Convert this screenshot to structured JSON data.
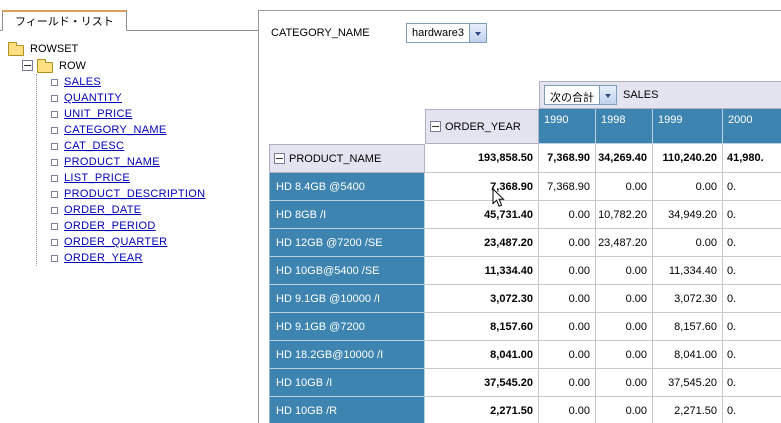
{
  "colors": {
    "accent_blue": "#3d84b0",
    "header_lavender": "#e4e4f0",
    "link_blue": "#0000bb"
  },
  "field_list": {
    "tab_label": "フィールド・リスト",
    "root": "ROWSET",
    "group": "ROW",
    "fields": [
      "SALES",
      "QUANTITY",
      "UNIT_PRICE",
      "CATEGORY_NAME",
      "CAT_DESC",
      "PRODUCT_NAME",
      "LIST_PRICE",
      "PRODUCT_DESCRIPTION",
      "ORDER_DATE",
      "ORDER_PERIOD",
      "ORDER_QUARTER",
      "ORDER_YEAR"
    ]
  },
  "filter": {
    "label": "CATEGORY_NAME",
    "value": "hardware3"
  },
  "pivot": {
    "measure_dropdown": "次の合計",
    "measure_name": "SALES",
    "col_dimension": "ORDER_YEAR",
    "row_dimension": "PRODUCT_NAME",
    "col_headers": [
      "1990",
      "1998",
      "1999",
      "2000"
    ],
    "grand_total": {
      "total": "193,858.50",
      "values": [
        "7,368.90",
        "34,269.40",
        "110,240.20",
        "41,980."
      ]
    },
    "rows": [
      {
        "name": "HD 8.4GB @5400",
        "total": "7,368.90",
        "values": [
          "7,368.90",
          "0.00",
          "0.00",
          "0."
        ]
      },
      {
        "name": "HD 8GB /I",
        "total": "45,731.40",
        "values": [
          "0.00",
          "10,782.20",
          "34,949.20",
          "0."
        ]
      },
      {
        "name": "HD 12GB @7200 /SE",
        "total": "23,487.20",
        "values": [
          "0.00",
          "23,487.20",
          "0.00",
          "0."
        ]
      },
      {
        "name": "HD 10GB@5400 /SE",
        "total": "11,334.40",
        "values": [
          "0.00",
          "0.00",
          "11,334.40",
          "0."
        ]
      },
      {
        "name": "HD 9.1GB @10000 /I",
        "total": "3,072.30",
        "values": [
          "0.00",
          "0.00",
          "3,072.30",
          "0."
        ]
      },
      {
        "name": "HD 9.1GB @7200",
        "total": "8,157.60",
        "values": [
          "0.00",
          "0.00",
          "8,157.60",
          "0."
        ]
      },
      {
        "name": "HD 18.2GB@10000 /I",
        "total": "8,041.00",
        "values": [
          "0.00",
          "0.00",
          "8,041.00",
          "0."
        ]
      },
      {
        "name": "HD 10GB /I",
        "total": "37,545.20",
        "values": [
          "0.00",
          "0.00",
          "37,545.20",
          "0."
        ]
      },
      {
        "name": "HD 10GB /R",
        "total": "2,271.50",
        "values": [
          "0.00",
          "0.00",
          "2,271.50",
          "0."
        ]
      }
    ]
  }
}
